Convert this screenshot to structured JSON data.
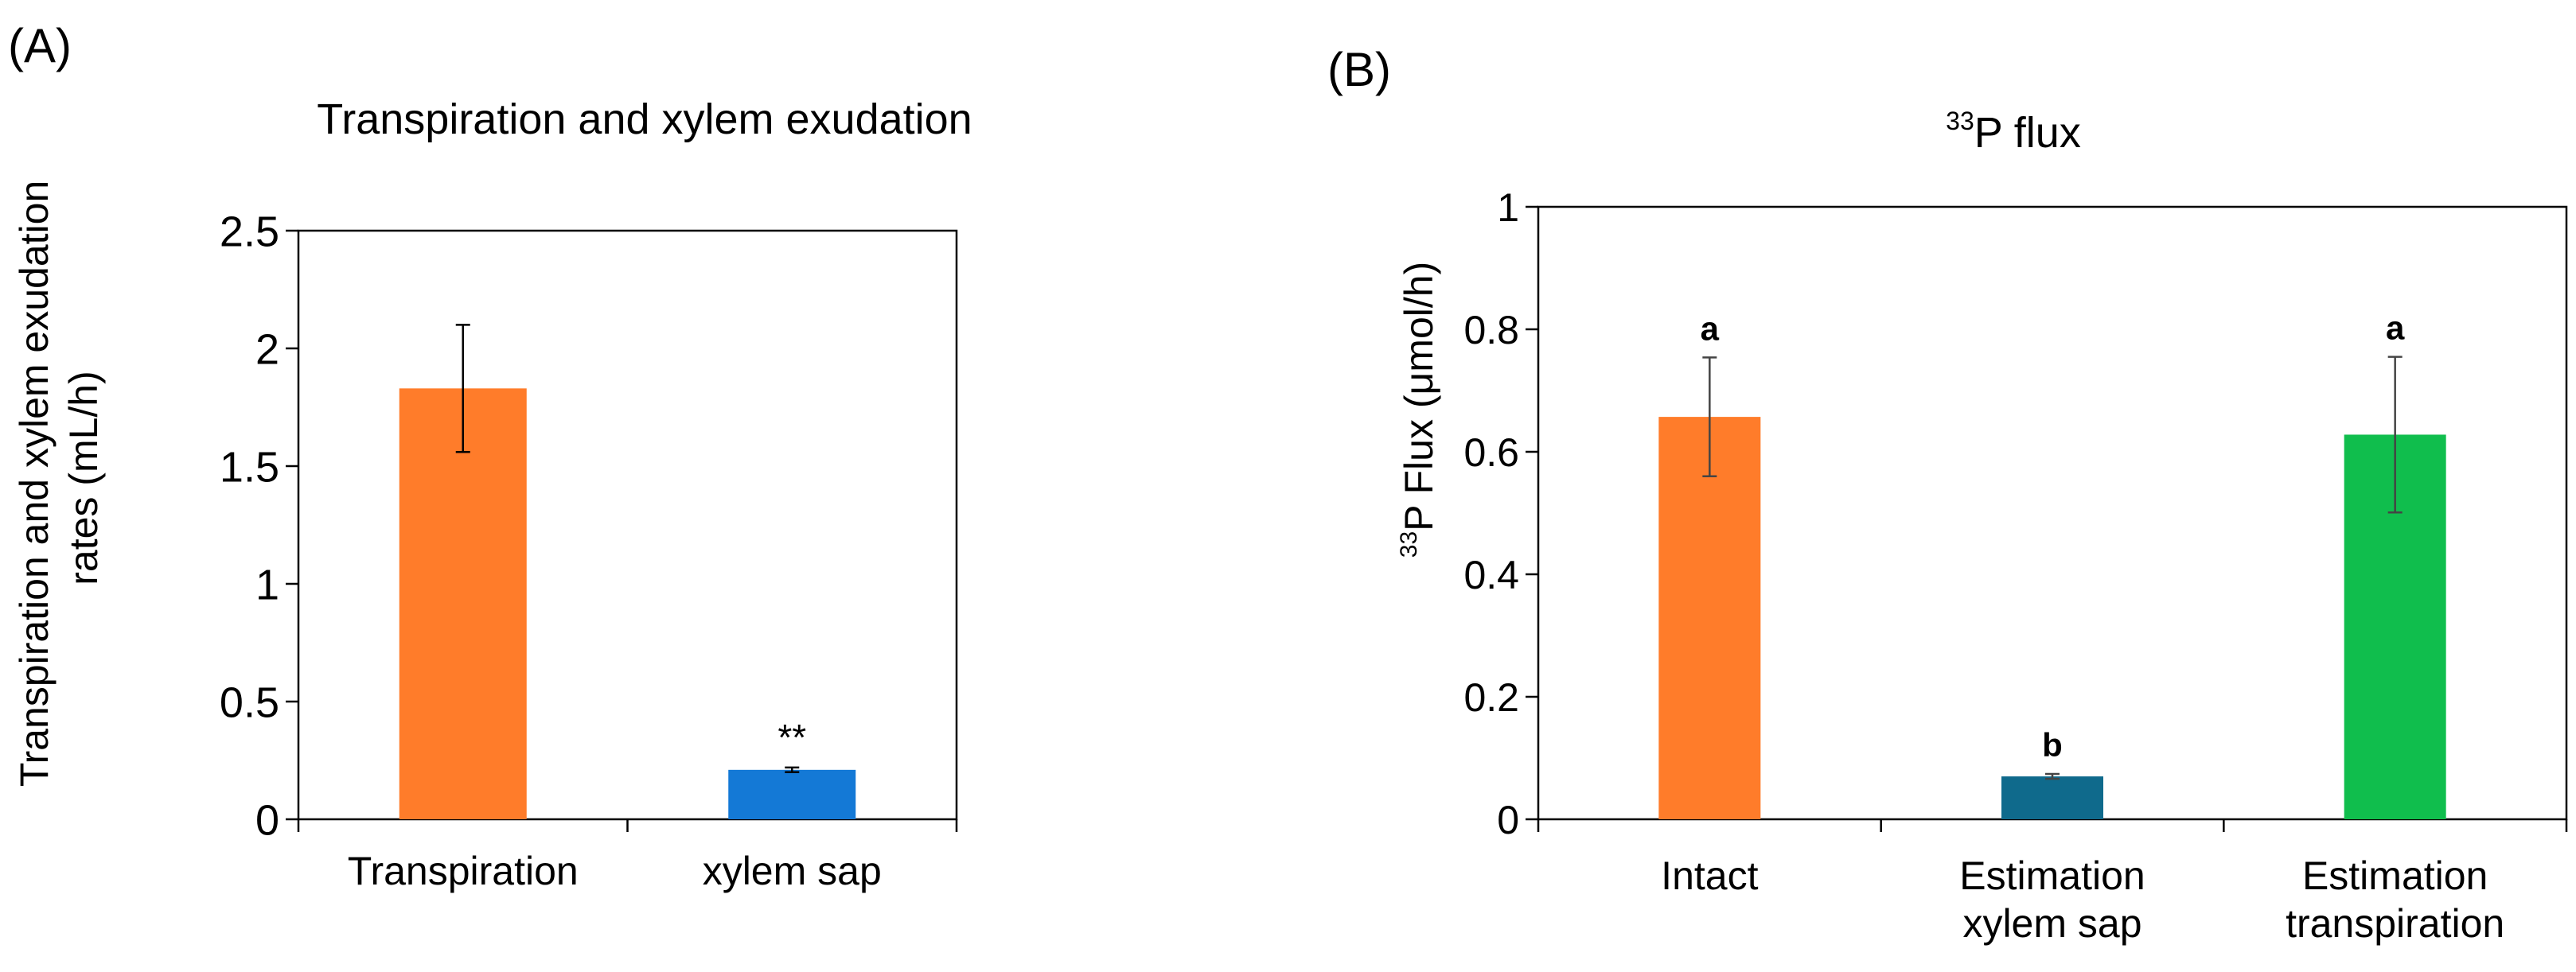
{
  "chart_data": [
    {
      "panel_label": "(A)",
      "type": "bar",
      "title": "Transpiration and xylem exudation",
      "ylabel_line1": "Transpiration and xylem exudation",
      "ylabel_line2": "rates (mL/h)",
      "xlabel": "",
      "ylim": [
        0,
        2.5
      ],
      "yticks": [
        "0",
        "0.5",
        "1",
        "1.5",
        "2",
        "2.5"
      ],
      "grid": false,
      "categories": [
        [
          "Transpiration"
        ],
        [
          "xylem sap"
        ]
      ],
      "values": [
        1.83,
        0.21
      ],
      "errors": [
        0.27,
        0.01
      ],
      "annotations": [
        "",
        "**"
      ],
      "colors": [
        "#FF7C2A",
        "#1479D6"
      ]
    },
    {
      "panel_label": "(B)",
      "type": "bar",
      "title_sup": "33",
      "title_main": "P flux",
      "ylabel_sup": "33",
      "ylabel_main": "P Flux (μmol/h)",
      "xlabel": "",
      "ylim": [
        0,
        1
      ],
      "yticks": [
        "0",
        "0.2",
        "0.4",
        "0.6",
        "0.8",
        "1"
      ],
      "grid": false,
      "categories": [
        [
          "Intact"
        ],
        [
          "Estimation",
          "xylem sap"
        ],
        [
          "Estimation",
          "transpiration"
        ]
      ],
      "values": [
        0.657,
        0.07,
        0.628
      ],
      "errors": [
        0.097,
        0.004,
        0.127
      ],
      "annotations": [
        "a",
        "b",
        "a"
      ],
      "colors": [
        "#FF7C2A",
        "#0F6A8C",
        "#10BE4D"
      ]
    }
  ]
}
